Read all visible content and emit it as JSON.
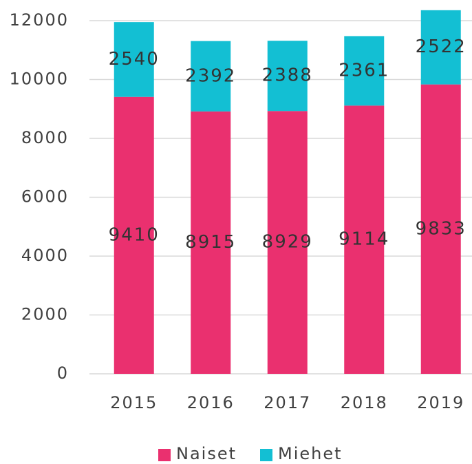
{
  "chart_data": {
    "type": "stacked_bar",
    "categories": [
      "2015",
      "2016",
      "2017",
      "2018",
      "2019"
    ],
    "series": [
      {
        "name": "Naiset",
        "color": "#ea306f",
        "values": [
          9410,
          8915,
          8929,
          9114,
          9833
        ]
      },
      {
        "name": "Miehet",
        "color": "#13bfd3",
        "values": [
          2540,
          2392,
          2388,
          2361,
          2522
        ]
      }
    ],
    "ylim": [
      0,
      12000
    ],
    "yticks": [
      0,
      2000,
      4000,
      6000,
      8000,
      10000,
      12000
    ],
    "grid": true,
    "legend": "bottom"
  }
}
